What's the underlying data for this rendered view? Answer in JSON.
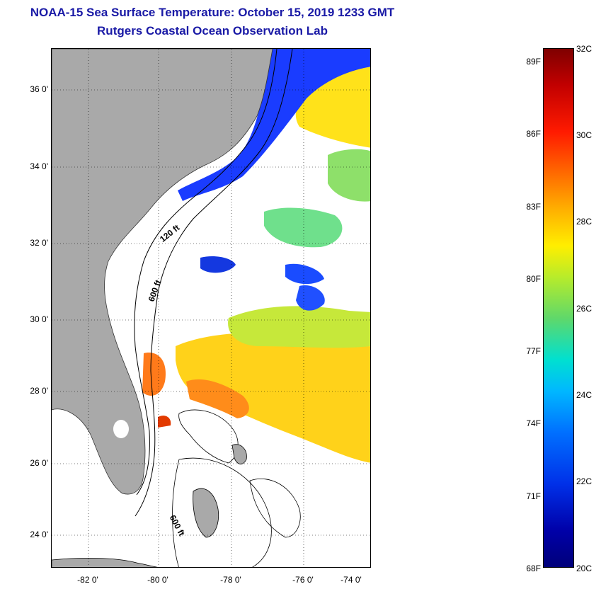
{
  "titles": {
    "line1": "NOAA-15 Sea Surface Temperature:  October 15, 2019 1233 GMT",
    "line2": "Rutgers Coastal Ocean Observation Lab"
  },
  "map": {
    "lat_labels": [
      "36 0'",
      "34 0'",
      "32 0'",
      "30 0'",
      "28 0'",
      "26 0'",
      "24 0'"
    ],
    "lon_labels": [
      "-82 0'",
      "-80 0'",
      "-78 0'",
      "-76 0'",
      "-74 0'"
    ],
    "isobath_labels": {
      "shelf": "120 ft",
      "slope": "600 ft",
      "bahamas": "600 ft"
    },
    "colors": {
      "land": "#a9a9a9",
      "cloud": "#ffffff",
      "water_warm": "#ffd21a",
      "water_cool": "#1a3cff"
    }
  },
  "colorbar": {
    "fahrenheit": [
      "89F",
      "86F",
      "83F",
      "80F",
      "77F",
      "74F",
      "71F",
      "68F"
    ],
    "celsius": [
      "32C",
      "30C",
      "28C",
      "26C",
      "24C",
      "22C",
      "20C"
    ],
    "range_c": [
      20,
      32
    ],
    "range_f": [
      68,
      89.6
    ]
  }
}
